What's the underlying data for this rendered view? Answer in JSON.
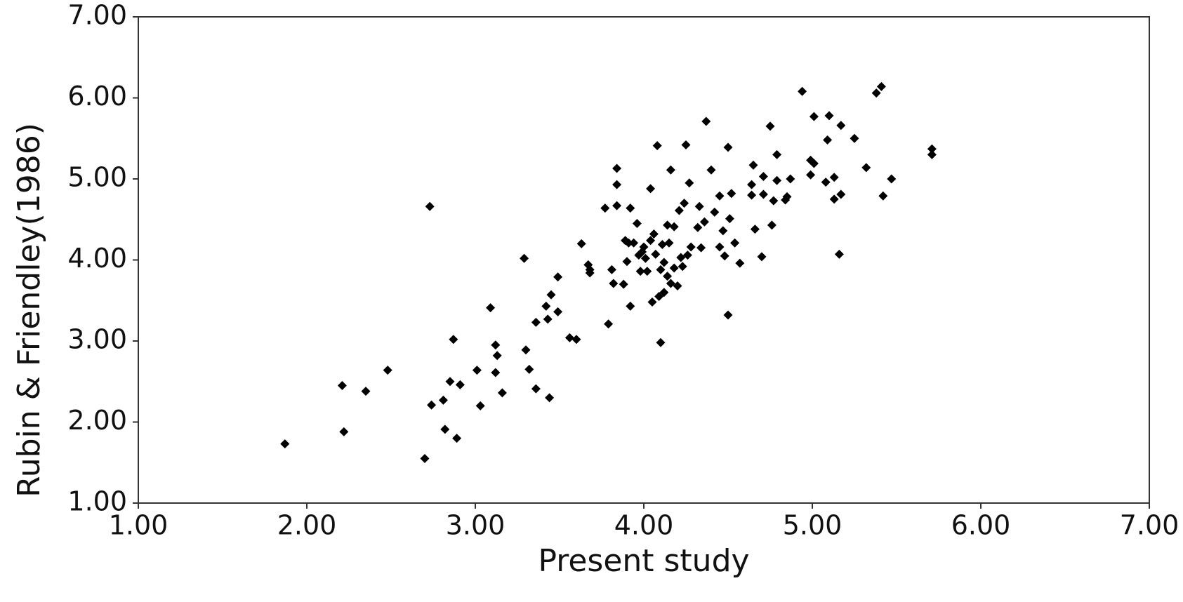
{
  "chart_data": {
    "type": "scatter",
    "x_label": "Present study",
    "y_label": "Rubin & Friendley(1986)",
    "color": "#000000",
    "xlim": [
      1,
      7
    ],
    "ylim": [
      1,
      7
    ],
    "xticks": [
      {
        "value": 1,
        "label": "1.00"
      },
      {
        "value": 2,
        "label": "2.00"
      },
      {
        "value": 3,
        "label": "3.00"
      },
      {
        "value": 4,
        "label": "4.00"
      },
      {
        "value": 5,
        "label": "5.00"
      },
      {
        "value": 6,
        "label": "6.00"
      },
      {
        "value": 7,
        "label": "7.00"
      }
    ],
    "yticks": [
      {
        "value": 1,
        "label": "1.00"
      },
      {
        "value": 2,
        "label": "2.00"
      },
      {
        "value": 3,
        "label": "3.00"
      },
      {
        "value": 4,
        "label": "4.00"
      },
      {
        "value": 5,
        "label": "5.00"
      },
      {
        "value": 6,
        "label": "6.00"
      },
      {
        "value": 7,
        "label": "7.00"
      }
    ],
    "grid": false,
    "x": [
      1.87,
      2.21,
      2.22,
      2.35,
      2.48,
      2.73,
      2.7,
      2.74,
      2.81,
      2.82,
      2.85,
      2.87,
      2.89,
      2.91,
      3.01,
      3.03,
      3.09,
      3.12,
      3.13,
      3.12,
      3.16,
      3.29,
      3.3,
      3.32,
      3.36,
      3.36,
      3.42,
      3.43,
      3.44,
      3.45,
      3.49,
      3.49,
      3.56,
      3.6,
      3.67,
      3.68,
      3.68,
      3.63,
      3.77,
      3.79,
      3.81,
      3.82,
      3.84,
      3.84,
      3.84,
      3.88,
      3.89,
      3.9,
      3.91,
      3.92,
      3.92,
      3.94,
      3.96,
      3.97,
      3.99,
      3.98,
      4.0,
      4.01,
      4.02,
      4.04,
      4.05,
      4.04,
      4.06,
      4.08,
      4.07,
      4.09,
      4.1,
      4.1,
      4.11,
      4.12,
      4.12,
      4.14,
      4.14,
      4.15,
      4.16,
      4.16,
      4.18,
      4.18,
      4.2,
      4.21,
      4.22,
      4.23,
      4.24,
      4.25,
      4.26,
      4.27,
      4.28,
      4.32,
      4.33,
      4.34,
      4.36,
      4.37,
      4.4,
      4.42,
      4.45,
      4.45,
      4.47,
      4.48,
      4.5,
      4.5,
      4.51,
      4.52,
      4.54,
      4.57,
      4.64,
      4.64,
      4.65,
      4.66,
      4.7,
      4.71,
      4.71,
      4.75,
      4.76,
      4.77,
      4.79,
      4.79,
      4.84,
      4.85,
      4.87,
      4.94,
      4.99,
      4.99,
      5.01,
      5.01,
      5.08,
      5.09,
      5.1,
      5.13,
      5.13,
      5.17,
      5.16,
      5.17,
      5.25,
      5.32,
      5.38,
      5.41,
      5.42,
      5.47,
      5.71,
      5.71
    ],
    "values": [
      1.73,
      2.45,
      1.88,
      2.38,
      2.64,
      4.66,
      1.55,
      2.21,
      2.27,
      1.91,
      2.5,
      3.02,
      1.8,
      2.46,
      2.64,
      2.2,
      3.41,
      2.95,
      2.82,
      2.61,
      2.36,
      4.02,
      2.89,
      2.65,
      2.41,
      3.23,
      3.43,
      3.27,
      2.3,
      3.57,
      3.36,
      3.79,
      3.04,
      3.02,
      3.94,
      3.84,
      3.88,
      4.2,
      4.64,
      3.21,
      3.88,
      3.71,
      5.13,
      4.93,
      4.67,
      3.7,
      4.24,
      3.98,
      4.21,
      4.64,
      3.43,
      4.21,
      4.45,
      4.06,
      4.1,
      3.86,
      4.16,
      4.02,
      3.86,
      4.88,
      3.48,
      4.24,
      4.32,
      5.41,
      4.07,
      3.55,
      2.98,
      3.88,
      4.19,
      3.97,
      3.6,
      4.43,
      3.8,
      4.21,
      5.11,
      3.71,
      4.41,
      3.9,
      3.68,
      4.61,
      4.03,
      3.92,
      4.7,
      5.42,
      4.06,
      4.95,
      4.16,
      4.4,
      4.66,
      4.15,
      4.47,
      5.71,
      5.11,
      4.59,
      4.79,
      4.16,
      4.36,
      4.05,
      5.39,
      3.32,
      4.51,
      4.82,
      4.21,
      3.96,
      4.8,
      4.93,
      5.17,
      4.38,
      4.04,
      5.03,
      4.81,
      5.65,
      4.43,
      4.73,
      5.3,
      4.98,
      4.74,
      4.78,
      5.0,
      6.08,
      5.05,
      5.23,
      5.19,
      5.77,
      4.96,
      5.48,
      5.78,
      4.75,
      5.02,
      5.66,
      4.07,
      4.81,
      5.5,
      5.14,
      6.06,
      6.14,
      4.79,
      5.0,
      5.3,
      5.37
    ]
  }
}
